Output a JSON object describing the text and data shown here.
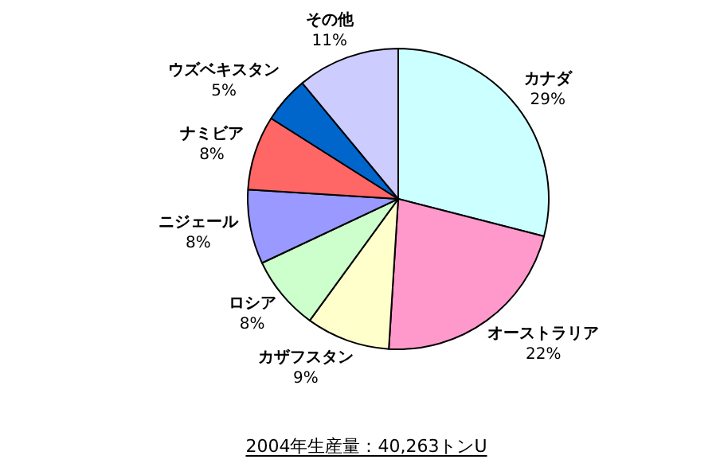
{
  "chart_data": {
    "type": "pie",
    "title": "2004年生産量：40,263トンU",
    "categories": [
      "カナダ",
      "オーストラリア",
      "カザフスタン",
      "ロシア",
      "ニジェール",
      "ナミビア",
      "ウズベキスタン",
      "その他"
    ],
    "values": [
      29,
      22,
      9,
      8,
      8,
      8,
      5,
      11
    ],
    "value_labels": [
      "29%",
      "22%",
      "9%",
      "8%",
      "8%",
      "8%",
      "5%",
      "11%"
    ],
    "colors": [
      "#ccffff",
      "#ff99cc",
      "#ffffcc",
      "#ccffcc",
      "#9999ff",
      "#ff6666",
      "#0066cc",
      "#ccccff"
    ],
    "legend": false
  }
}
